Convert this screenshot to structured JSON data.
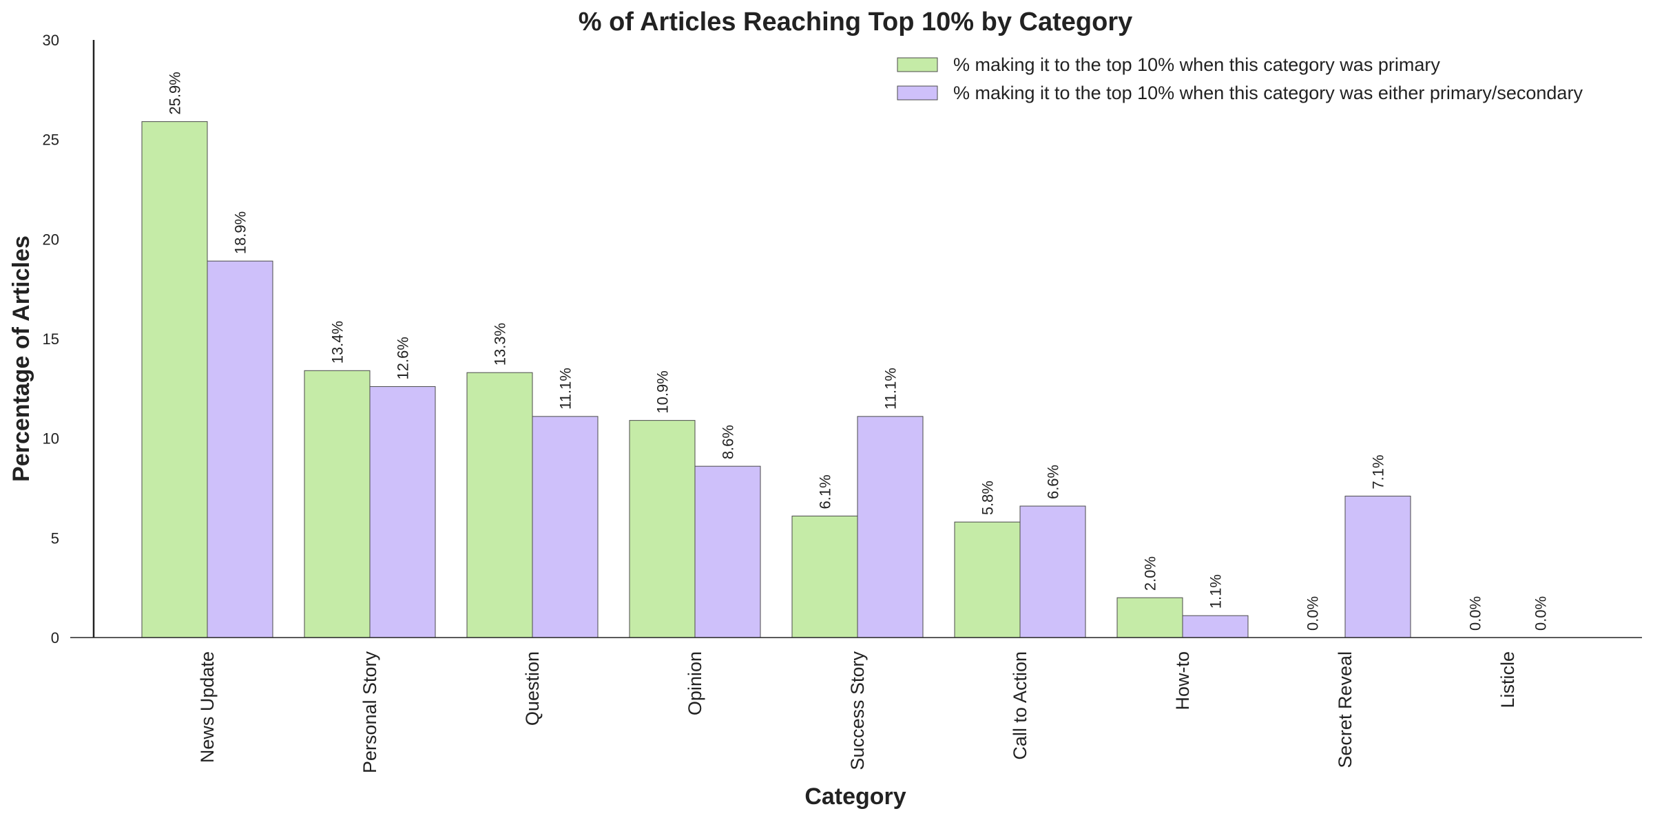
{
  "chart_data": {
    "type": "bar",
    "title": "% of Articles Reaching Top 10% by Category",
    "xlabel": "Category",
    "ylabel": "Percentage of Articles",
    "ylim": [
      0,
      30
    ],
    "yticks": [
      0,
      5,
      10,
      15,
      20,
      25,
      30
    ],
    "grid": false,
    "legend_position": "top-right",
    "categories": [
      "News Update",
      "Personal Story",
      "Question",
      "Opinion",
      "Success Story",
      "Call to Action",
      "How-to",
      "Secret Reveal",
      "Listicle"
    ],
    "series": [
      {
        "name": "% making it to the top 10% when this category was primary",
        "color": "#c5eba7",
        "values": [
          25.9,
          13.4,
          13.3,
          10.9,
          6.1,
          5.8,
          2.0,
          0.0,
          0.0
        ],
        "labels": [
          "25.9%",
          "13.4%",
          "13.3%",
          "10.9%",
          "6.1%",
          "5.8%",
          "2.0%",
          "0.0%",
          "0.0%"
        ]
      },
      {
        "name": "% making it to the top 10% when this category was either primary/secondary",
        "color": "#cec0fa",
        "values": [
          18.9,
          12.6,
          11.1,
          8.6,
          11.1,
          6.6,
          1.1,
          7.1,
          0.0
        ],
        "labels": [
          "18.9%",
          "12.6%",
          "11.1%",
          "8.6%",
          "11.1%",
          "6.6%",
          "1.1%",
          "7.1%",
          "0.0%"
        ]
      }
    ]
  }
}
